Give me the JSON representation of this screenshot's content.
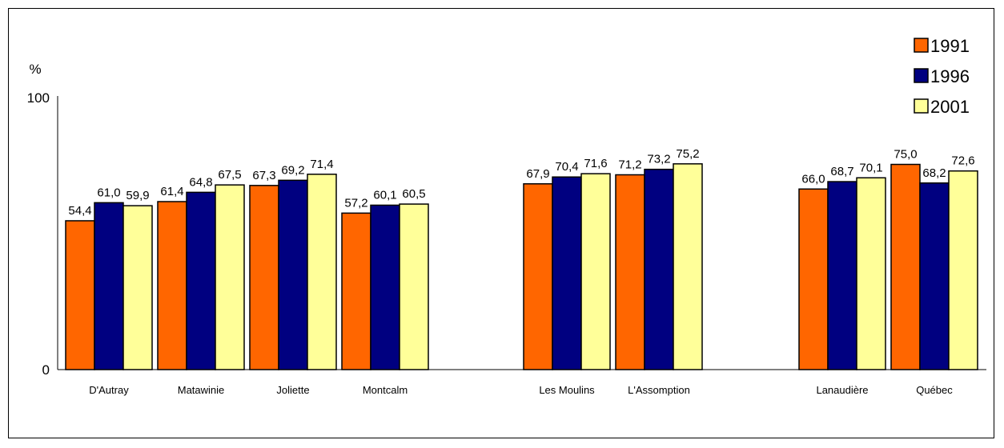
{
  "chart_data": {
    "type": "bar",
    "ylabel": "%",
    "ylim": [
      0,
      100
    ],
    "yticks": [
      "0",
      "100"
    ],
    "categories": [
      "D'Autray",
      "Matawinie",
      "Joliette",
      "Montcalm",
      "Les Moulins",
      "L'Assomption",
      "Lanaudière",
      "Québec"
    ],
    "groups": [
      [
        0,
        1,
        2,
        3
      ],
      [
        4,
        5
      ],
      [
        6,
        7
      ]
    ],
    "series": [
      {
        "name": "1991",
        "color": "#ff6600",
        "values": [
          54.4,
          61.4,
          67.3,
          57.2,
          67.9,
          71.2,
          66.0,
          75.0
        ],
        "labels": [
          "54,4",
          "61,4",
          "67,3",
          "57,2",
          "67,9",
          "71,2",
          "66,0",
          "75,0"
        ]
      },
      {
        "name": "1996",
        "color": "#000080",
        "values": [
          61.0,
          64.8,
          69.2,
          60.1,
          70.4,
          73.2,
          68.7,
          68.2
        ],
        "labels": [
          "61,0",
          "64,8",
          "69,2",
          "60,1",
          "70,4",
          "73,2",
          "68,7",
          "68,2"
        ]
      },
      {
        "name": "2001",
        "color": "#ffff99",
        "values": [
          59.9,
          67.5,
          71.4,
          60.5,
          71.6,
          75.2,
          70.1,
          72.6
        ],
        "labels": [
          "59,9",
          "67,5",
          "71,4",
          "60,5",
          "71,6",
          "75,2",
          "70,1",
          "72,6"
        ]
      }
    ],
    "legend": "top-right",
    "grid": false
  }
}
